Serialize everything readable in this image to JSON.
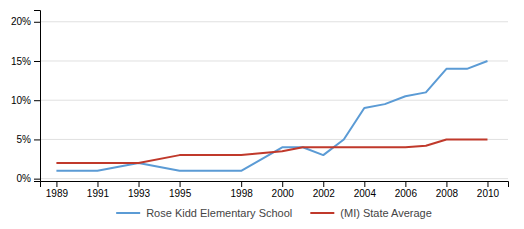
{
  "chart_data": {
    "type": "line",
    "x": [
      1989,
      1991,
      1993,
      1995,
      1998,
      2000,
      2001,
      2002,
      2003,
      2004,
      2005,
      2006,
      2007,
      2008,
      2009,
      2010
    ],
    "series": [
      {
        "name": "Rose Kidd Elementary School",
        "color": "#5b9bd5",
        "values": [
          0.01,
          0.01,
          0.02,
          0.01,
          0.01,
          0.04,
          0.04,
          0.03,
          0.05,
          0.09,
          0.095,
          0.105,
          0.11,
          0.14,
          0.14,
          0.15
        ]
      },
      {
        "name": "(MI) State Average",
        "color": "#c0392b",
        "values": [
          0.02,
          0.02,
          0.02,
          0.03,
          0.03,
          0.035,
          0.04,
          0.04,
          0.04,
          0.04,
          0.04,
          0.04,
          0.042,
          0.05,
          0.05,
          0.05
        ]
      }
    ],
    "xlim": [
      1988.2,
      2011.0
    ],
    "xticks": [
      1989,
      1991,
      1993,
      1995,
      1998,
      2000,
      2002,
      2004,
      2006,
      2008,
      2010
    ],
    "ylim": [
      -0.003,
      0.215
    ],
    "yticks": [
      {
        "value": 0.0,
        "label": "0%"
      },
      {
        "value": 0.05,
        "label": "5%"
      },
      {
        "value": 0.1,
        "label": "10%"
      },
      {
        "value": 0.15,
        "label": "15%"
      },
      {
        "value": 0.2,
        "label": "20%"
      }
    ],
    "grid": true,
    "legend": "bottom"
  }
}
